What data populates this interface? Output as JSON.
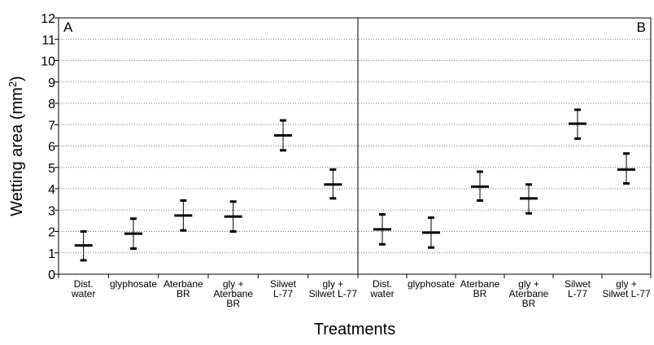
{
  "chart_data": {
    "type": "scatter",
    "ylabel": "Wetting area (mm²)",
    "xlabel": "Treatments",
    "ylim": [
      0,
      12
    ],
    "yticks": [
      "0",
      "1",
      "2",
      "3",
      "4",
      "5",
      "6",
      "7",
      "8",
      "9",
      "10",
      "11",
      "12"
    ],
    "grid": true,
    "panels": [
      {
        "label": "A",
        "categories": [
          "Dist. water",
          "glyphosate",
          "Aterbane BR",
          "gly + Aterbane BR",
          "Silwet L-77",
          "gly + Silwet L-77"
        ],
        "mean": [
          1.35,
          1.9,
          2.75,
          2.7,
          6.5,
          4.2
        ],
        "lower": [
          0.65,
          1.2,
          2.05,
          2.0,
          5.8,
          3.55
        ],
        "upper": [
          2.0,
          2.6,
          3.45,
          3.4,
          7.2,
          4.9
        ]
      },
      {
        "label": "B",
        "categories": [
          "Dist. water",
          "glyphosate",
          "Aterbane BR",
          "gly + Aterbane BR",
          "Silwet L-77",
          "gly + Silwet L-77"
        ],
        "mean": [
          2.1,
          1.95,
          4.1,
          3.55,
          7.05,
          4.9
        ],
        "lower": [
          1.4,
          1.25,
          3.45,
          2.85,
          6.35,
          4.25
        ],
        "upper": [
          2.8,
          2.65,
          4.8,
          4.2,
          7.7,
          5.65
        ]
      }
    ]
  }
}
